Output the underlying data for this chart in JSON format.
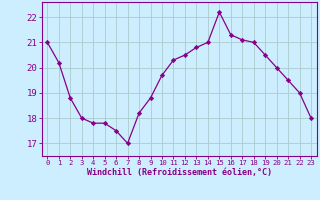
{
  "x": [
    0,
    1,
    2,
    3,
    4,
    5,
    6,
    7,
    8,
    9,
    10,
    11,
    12,
    13,
    14,
    15,
    16,
    17,
    18,
    19,
    20,
    21,
    22,
    23
  ],
  "y": [
    21.0,
    20.2,
    18.8,
    18.0,
    17.8,
    17.8,
    17.5,
    17.0,
    18.2,
    18.8,
    19.7,
    20.3,
    20.5,
    20.8,
    21.0,
    22.2,
    21.3,
    21.1,
    21.0,
    20.5,
    20.0,
    19.5,
    19.0,
    18.0
  ],
  "line_color": "#880088",
  "marker": "D",
  "marker_size": 2.2,
  "bg_color": "#cceeff",
  "grid_color": "#aacccc",
  "xlabel": "Windchill (Refroidissement éolien,°C)",
  "ylim": [
    16.5,
    22.6
  ],
  "yticks": [
    17,
    18,
    19,
    20,
    21,
    22
  ],
  "xticks": [
    0,
    1,
    2,
    3,
    4,
    5,
    6,
    7,
    8,
    9,
    10,
    11,
    12,
    13,
    14,
    15,
    16,
    17,
    18,
    19,
    20,
    21,
    22,
    23
  ],
  "tick_color": "#880088",
  "spine_color": "#880088",
  "xlabel_fontsize": 6.0,
  "ytick_fontsize": 6.5,
  "xtick_fontsize": 5.2
}
